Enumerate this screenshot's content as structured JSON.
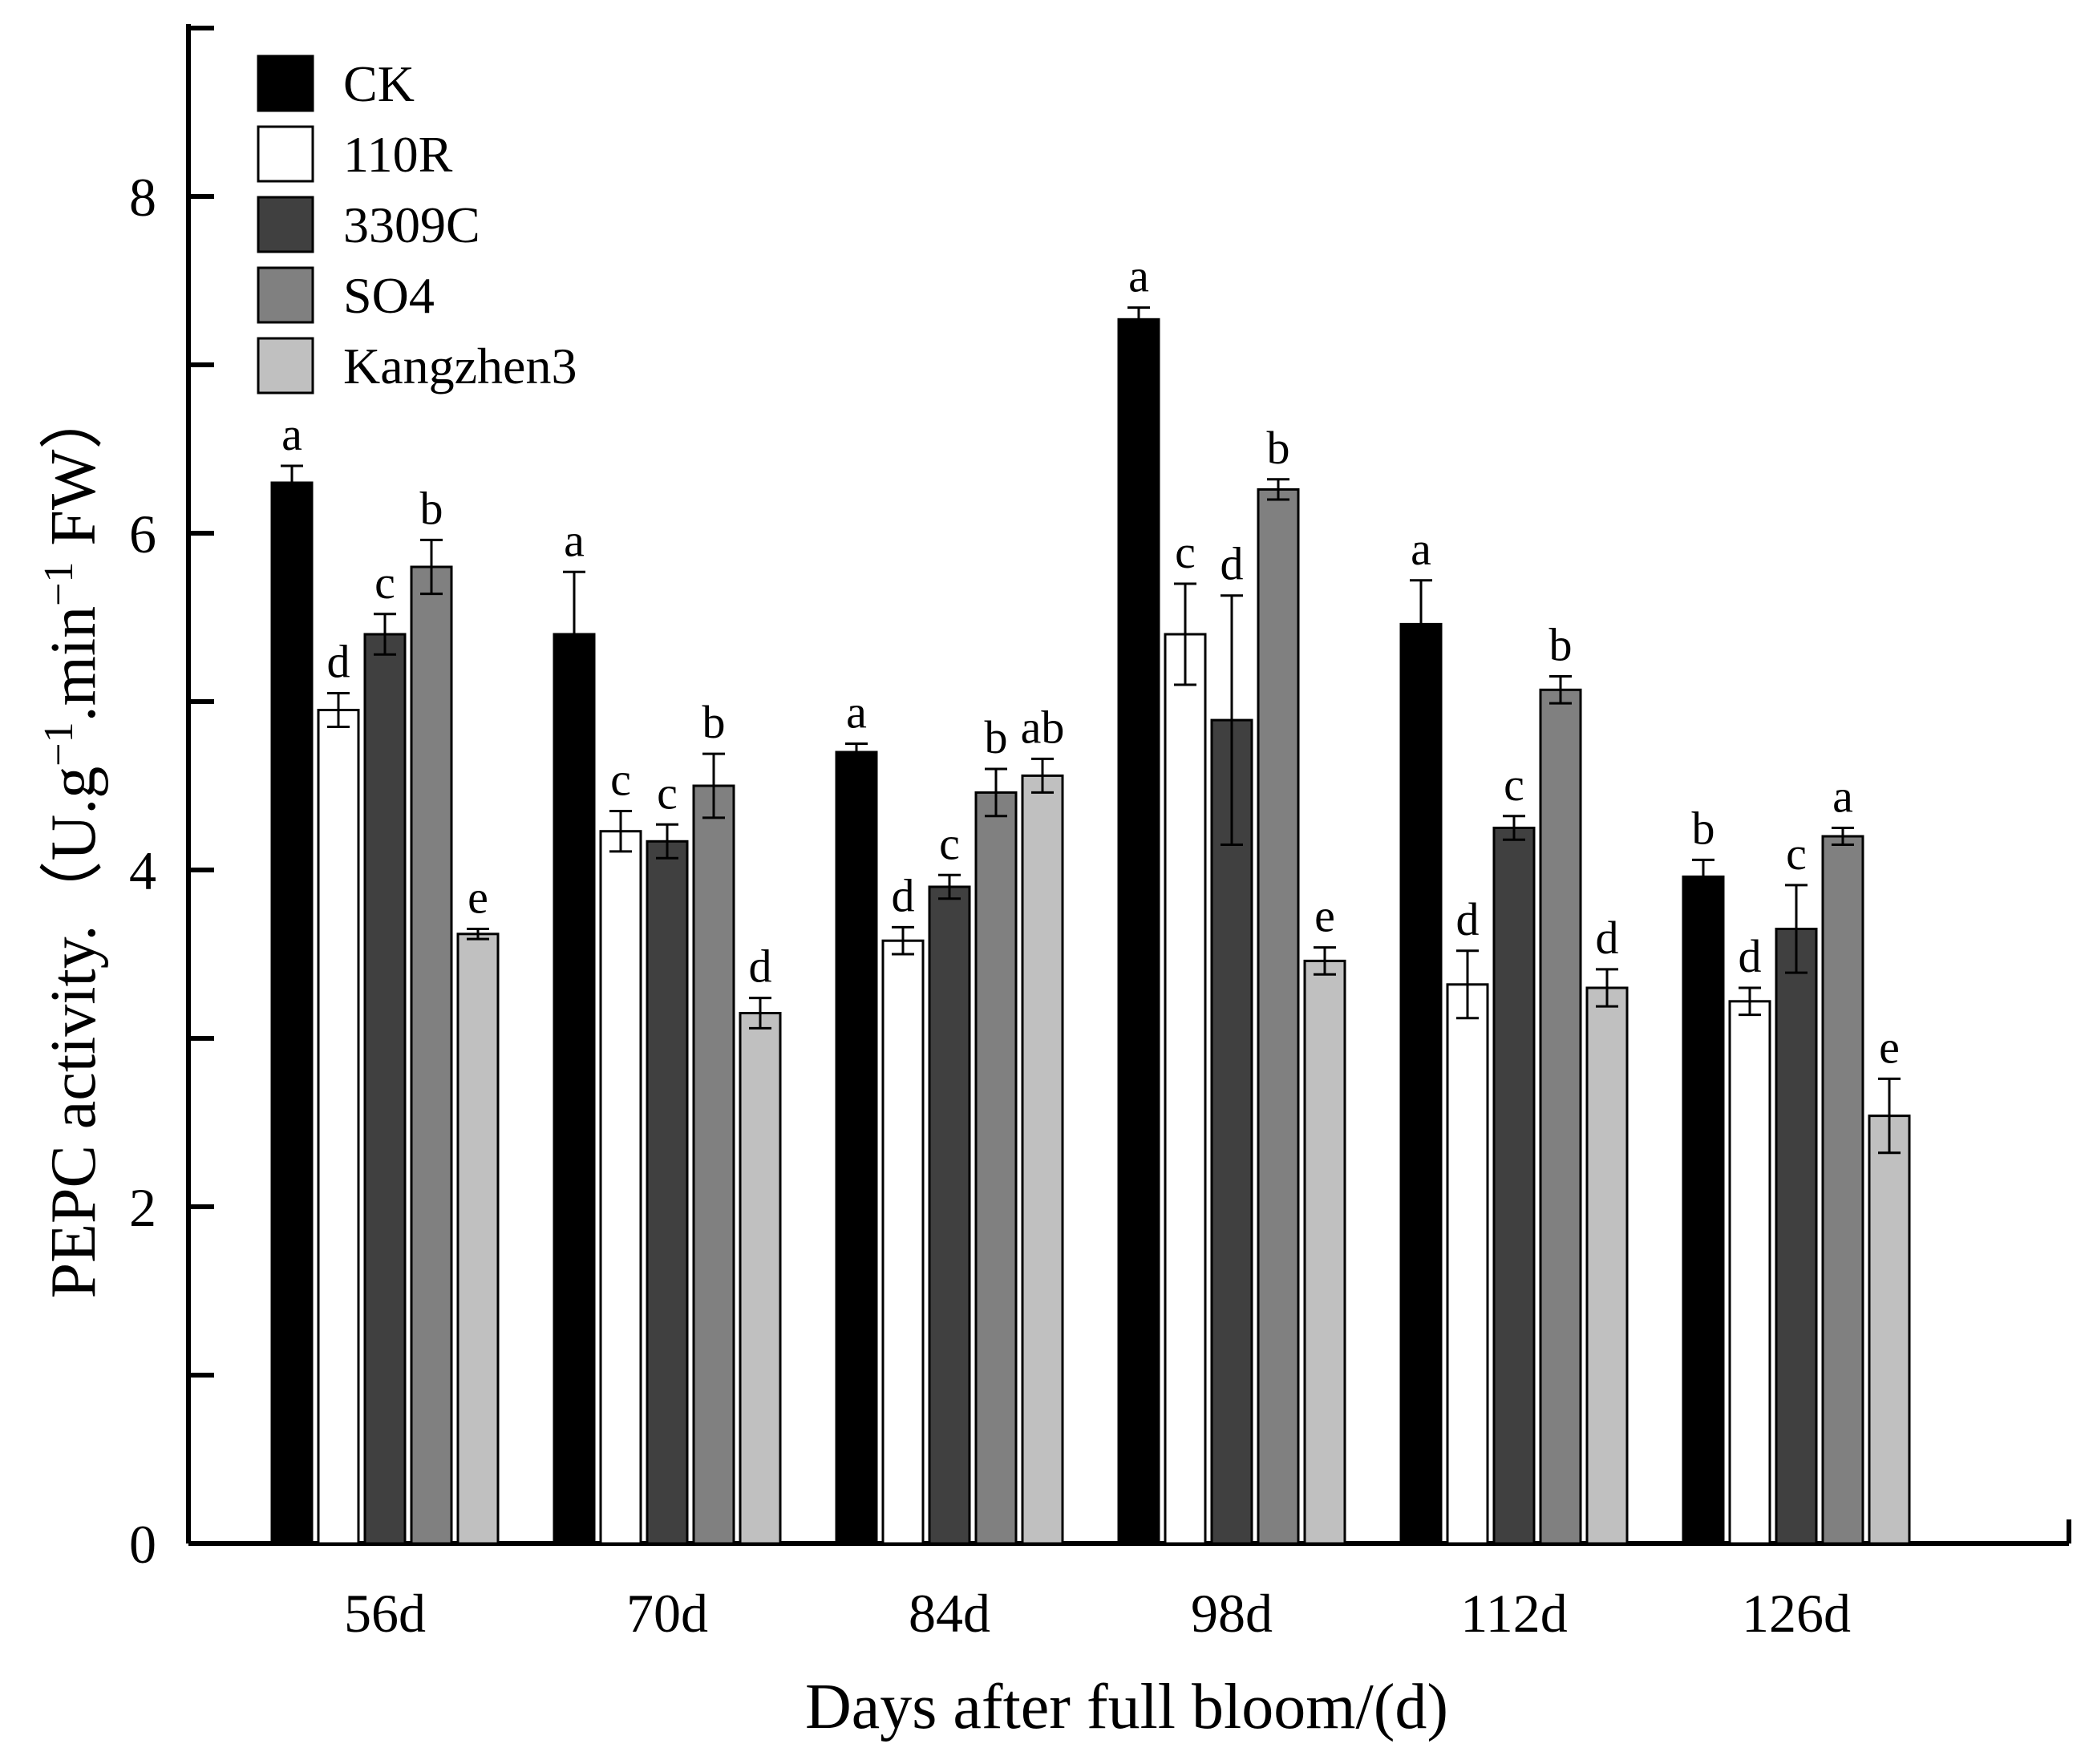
{
  "chart_data": {
    "type": "bar",
    "title": "",
    "xlabel": "Days after full bloom/(d)",
    "ylabel": "PEPC activity.（U.g⁻¹.min⁻¹ FW）",
    "ylabel_parts": [
      "PEPC activity.（U.g",
      "−1",
      ".min",
      "−1",
      " FW）"
    ],
    "ylim": [
      0,
      9
    ],
    "y_ticks_labeled": [
      0,
      2,
      4,
      6,
      8
    ],
    "y_tick_labels": [
      "0",
      "2",
      "4",
      "6",
      "8"
    ],
    "y_ticks_minor": [
      1,
      3,
      5,
      7,
      9
    ],
    "categories": [
      "56d",
      "70d",
      "84d",
      "98d",
      "112d",
      "126d"
    ],
    "legend_position": "top-left",
    "grid": false,
    "series": [
      {
        "name": "CK",
        "color": "#000000",
        "values": [
          6.3,
          5.4,
          4.7,
          7.27,
          5.46,
          3.96
        ],
        "errors": [
          0.1,
          0.37,
          0.05,
          0.07,
          0.26,
          0.1
        ],
        "labels": [
          "a",
          "a",
          "a",
          "a",
          "a",
          "b"
        ]
      },
      {
        "name": "110R",
        "color": "#ffffff",
        "values": [
          4.95,
          4.23,
          3.58,
          5.4,
          3.32,
          3.22
        ],
        "errors": [
          0.1,
          0.12,
          0.08,
          0.3,
          0.2,
          0.08
        ],
        "labels": [
          "d",
          "c",
          "d",
          "c",
          "d",
          "d"
        ]
      },
      {
        "name": "3309C",
        "color": "#404040",
        "values": [
          5.4,
          4.17,
          3.9,
          4.89,
          4.25,
          3.65
        ],
        "errors": [
          0.12,
          0.1,
          0.07,
          0.74,
          0.07,
          0.26
        ],
        "labels": [
          "c",
          "c",
          "c",
          "d",
          "c",
          "c"
        ]
      },
      {
        "name": "SO4",
        "color": "#808080",
        "values": [
          5.8,
          4.5,
          4.46,
          6.26,
          5.07,
          4.2
        ],
        "errors": [
          0.16,
          0.19,
          0.14,
          0.06,
          0.08,
          0.05
        ],
        "labels": [
          "b",
          "b",
          "b",
          "b",
          "b",
          "a"
        ]
      },
      {
        "name": "Kangzhen3",
        "color": "#c0c0c0",
        "values": [
          3.62,
          3.15,
          4.56,
          3.46,
          3.3,
          2.54
        ],
        "errors": [
          0.03,
          0.09,
          0.1,
          0.08,
          0.11,
          0.22
        ],
        "labels": [
          "e",
          "d",
          "ab",
          "e",
          "d",
          "e"
        ]
      }
    ]
  }
}
